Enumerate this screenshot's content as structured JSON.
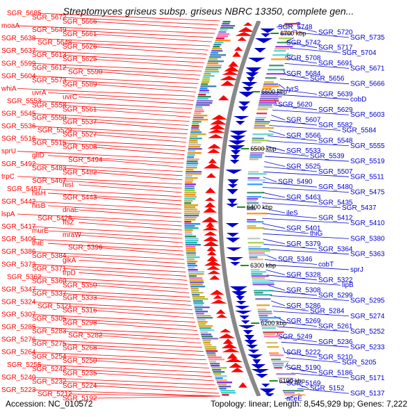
{
  "title": "Streptomyces griseus subsp. griseus NBRC 13350, complete gen...",
  "footer": {
    "accession": "Accession: NC_010572",
    "summary": "Topology: linear; Length: 8,545,929 bp; Genes: 7,222"
  },
  "colors": {
    "forward": "#ff0000",
    "reverse": "#0000cc",
    "backbone": "#888888",
    "tick": "#228b22"
  },
  "scale_ticks": [
    "6700 kbp",
    "6600 kbp",
    "6500 kbp",
    "6400 kbp",
    "6300 kbp",
    "6200 kbp",
    "6100 kbp"
  ],
  "left_labels": [
    "SGR_5685",
    "SGR_5672",
    "SGR_5666",
    "moaA",
    "SGR_5649",
    "SGR_5661",
    "SGR_5638",
    "SGR_5648",
    "SGR_5626",
    "SGR_5637",
    "SGR_5613",
    "SGR_5625",
    "SGR_5599",
    "SGR_5612",
    "SGR_5590",
    "SGR_5604",
    "SGR_5573",
    "SGR_5589",
    "whiA",
    "uvrA",
    "uvrC",
    "SGR_5553",
    "SGR_5558",
    "SGR_5561",
    "SGR_5545",
    "SGR_5550",
    "SGR_5537",
    "SGR_5536",
    "SGR_5529",
    "SGR_5527",
    "SGR_5516",
    "SGR_5515",
    "SGR_5508",
    "sprU",
    "gltD",
    "SGR_5494",
    "SGR_5492",
    "SGR_5483",
    "SGR_5482",
    "trpC",
    "SGR_5467",
    "hisI",
    "SGR_5457",
    "hisH",
    "SGR_5443",
    "SGR_5442",
    "hisB",
    "dnaE",
    "lspA",
    "SGR_5428",
    "ftsZ",
    "SGR_5417",
    "murE",
    "mraW",
    "SGR_5406",
    "thiE",
    "SGR_5396",
    "SGR_5386",
    "SGR_5384",
    "glkA",
    "SGR_5373",
    "SGR_5371",
    "trpD",
    "SGR_5362",
    "SGR_5360",
    "SGR_5350",
    "SGR_5347",
    "SGR_5337",
    "SGR_5333",
    "SGR_5324",
    "SGR_5321",
    "SGR_5316",
    "SGR_5307",
    "SGR_5305",
    "SGR_5298",
    "SGR_5285",
    "SGR_5283",
    "SGR_5282",
    "SGR_5276",
    "SGR_5275",
    "SGR_5268",
    "SGR_5264",
    "SGR_5254",
    "SGR_5250",
    "SGR_5255",
    "SGR_5242",
    "SGR_5235",
    "SGR_5240",
    "SGR_5232",
    "SGR_5224",
    "SGR_5223",
    "SGR_5212",
    "SGR_5192"
  ],
  "right_labels": [
    "SGR_5748",
    "SGR_5720",
    "SGR_5735",
    "SGR_5742",
    "SGR_5717",
    "SGR_5704",
    "SGR_5708",
    "SGR_5691",
    "SGR_5671",
    "SGR_5684",
    "SGR_5656",
    "SGR_5666",
    "tyrS",
    "SGR_5639",
    "cobD",
    "SGR_5620",
    "SGR_5629",
    "SGR_5603",
    "SGR_5607",
    "SGR_5582",
    "SGR_5584",
    "SGR_5566",
    "SGR_5548",
    "SGR_5555",
    "SGR_5533",
    "SGR_5539",
    "SGR_5519",
    "SGR_5525",
    "SGR_5507",
    "SGR_5511",
    "SGR_5490",
    "SGR_5480",
    "SGR_5475",
    "SGR_5463",
    "SGR_5435",
    "SGR_5437",
    "ileS",
    "SGR_5412",
    "SGR_5410",
    "SGR_5401",
    "thiG",
    "SGR_5380",
    "SGR_5379",
    "SGR_5364",
    "SGR_5363",
    "SGR_5346",
    "cobT",
    "sprJ",
    "SGR_5328",
    "SGR_5322",
    "lipB",
    "SGR_5308",
    "SGR_5299",
    "SGR_5295",
    "SGR_5286",
    "SGR_5284",
    "SGR_5274",
    "SGR_5269",
    "SGR_5261",
    "SGR_5252",
    "SGR_5249",
    "SGR_5236",
    "SGR_5233",
    "SGR_5222",
    "SGR_5210",
    "SGR_5205",
    "SGR_5190",
    "SGR_5186",
    "SGR_5171",
    "SGR_5169",
    "SGR_5152",
    "SGR_5137",
    "aceE"
  ]
}
